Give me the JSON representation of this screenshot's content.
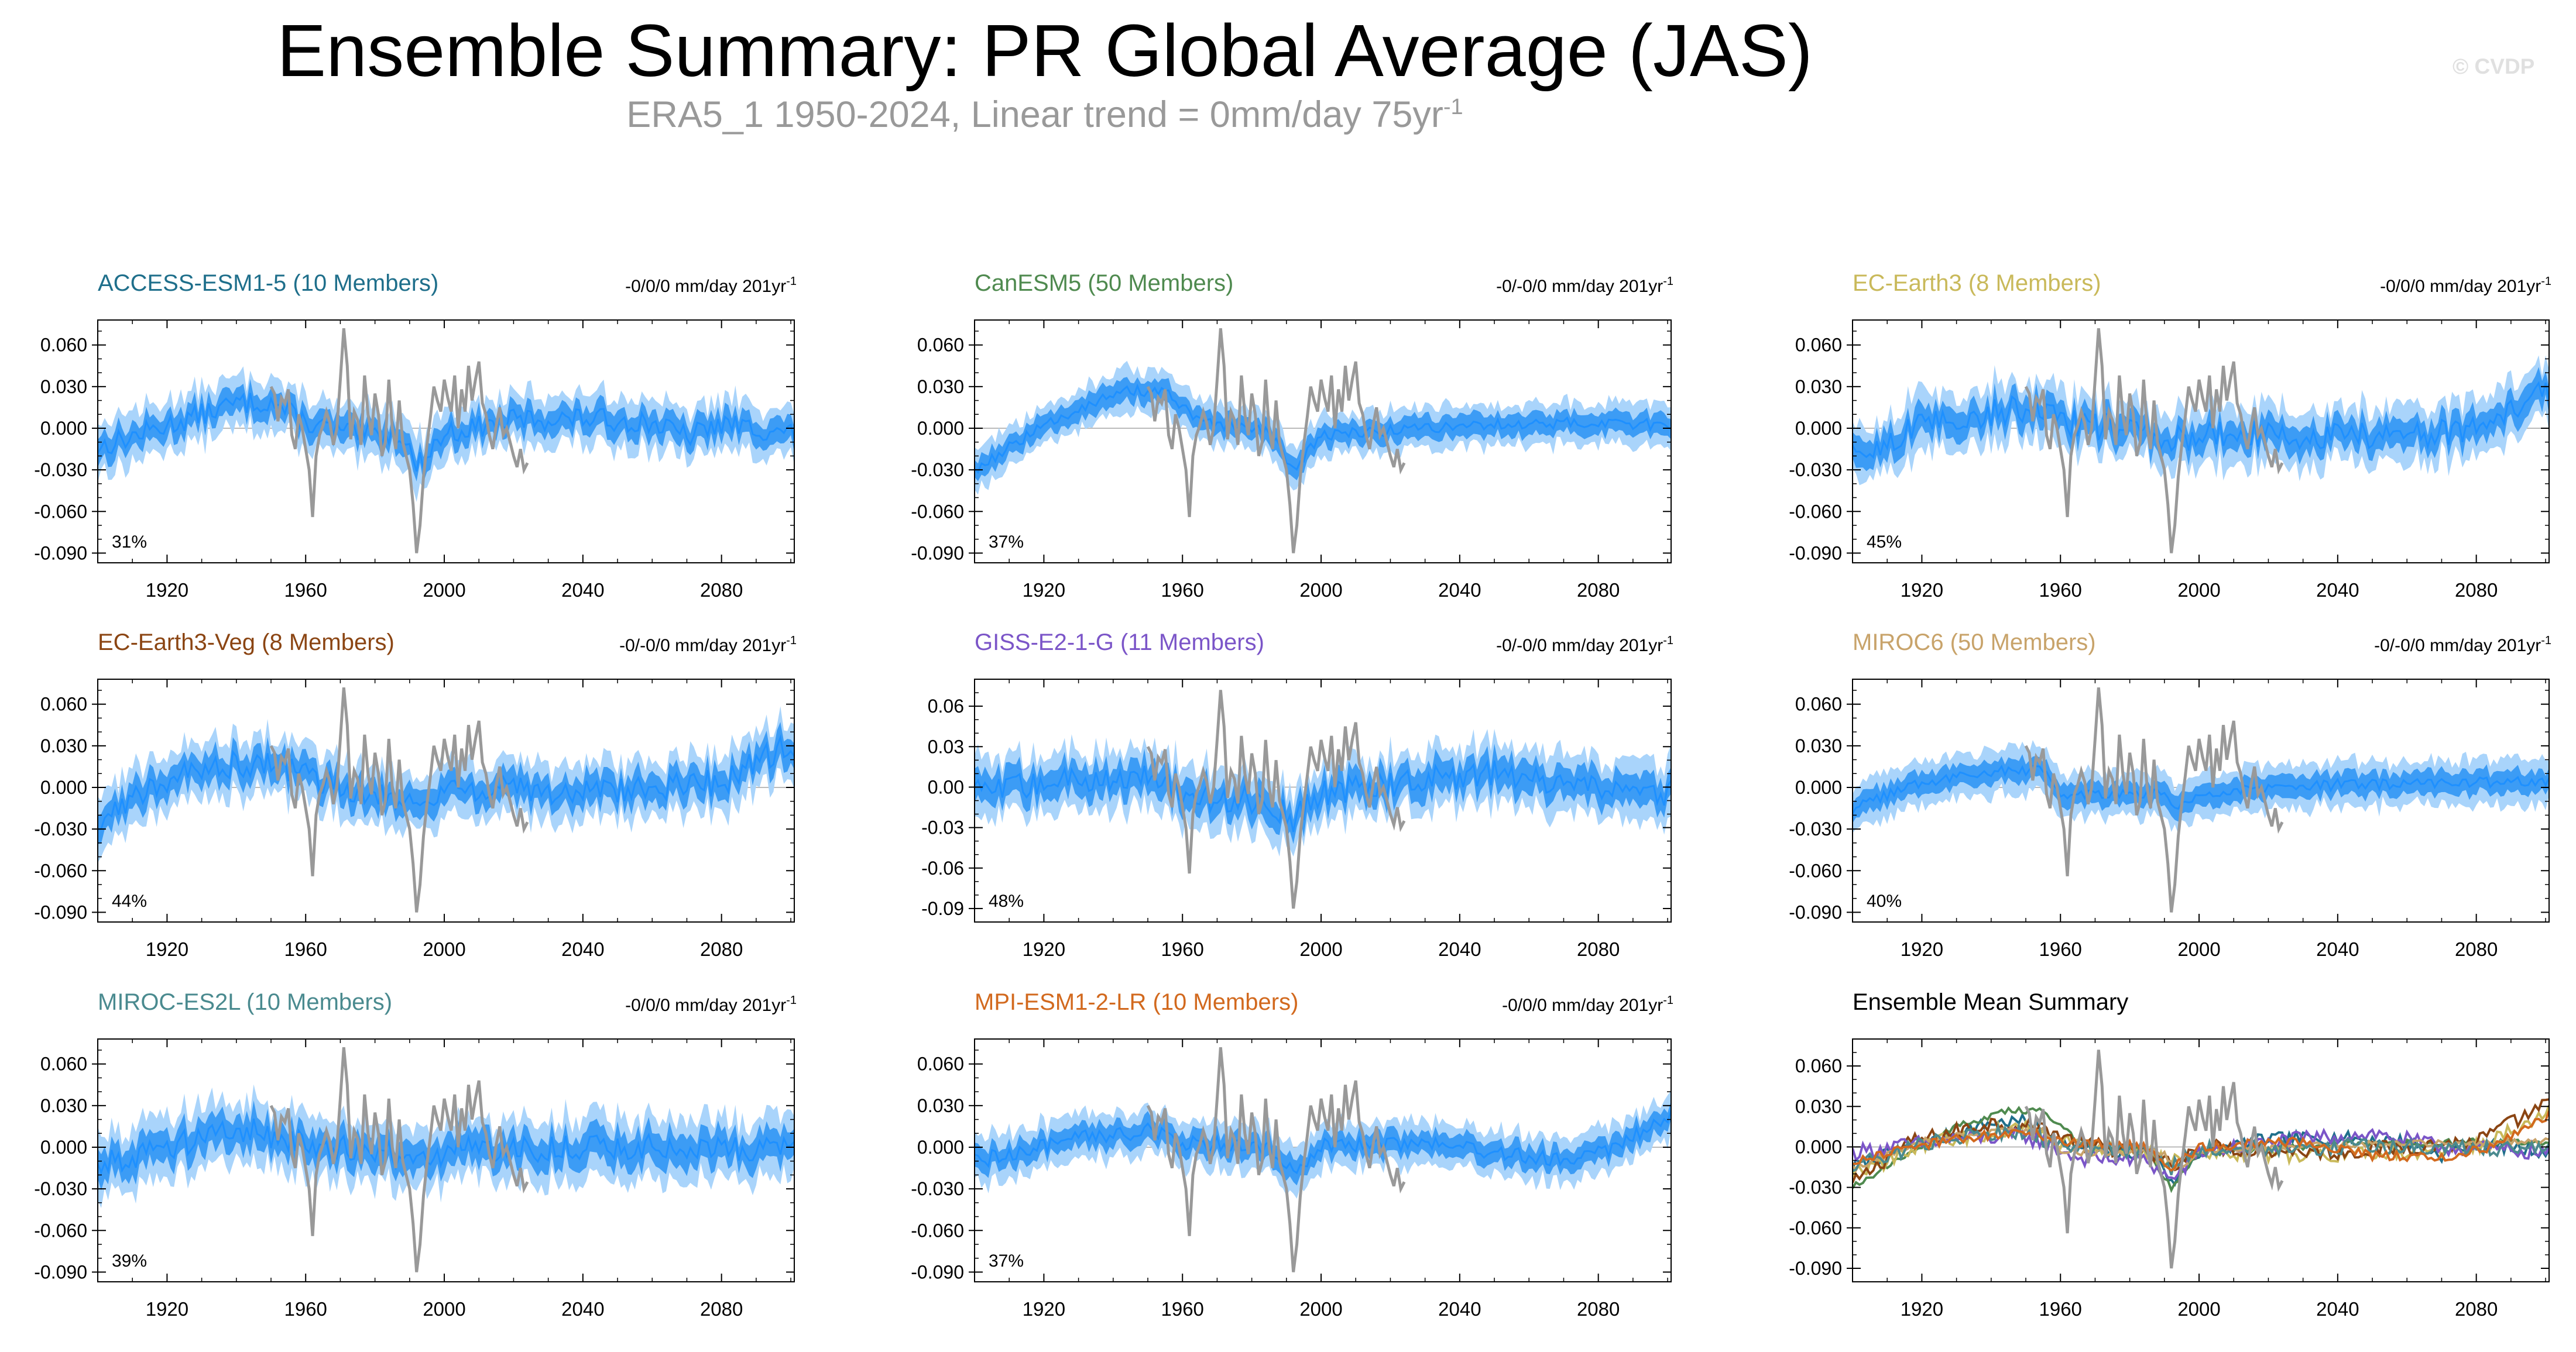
{
  "title": "Ensemble Summary: PR Global Average (JAS)",
  "subtitle": {
    "text": "ERA5_1 1950-2024, Linear trend = 0mm/day 75yr",
    "sup": "-1"
  },
  "watermark": "© CVDP",
  "colors": {
    "ensemble_mean": "#1e90ff",
    "band_inner": "#3c9cf5",
    "band_outer": "#a9d4fb",
    "observations": "#999999"
  },
  "chart_data": [
    {
      "type": "line",
      "model": "ACCESS-ESM1-5 (10 Members)",
      "title_color": "#1f6f8b",
      "trend": "-0/0/0 mm/day 201yr",
      "trend_sup": "-1",
      "percent": "31%",
      "yticks": [
        "0.060",
        "0.030",
        "0.000",
        "-0.030",
        "-0.060",
        "-0.090"
      ],
      "ytick_values": [
        0.06,
        0.03,
        0,
        -0.03,
        -0.06,
        -0.09
      ],
      "ylim": [
        -0.097,
        0.078
      ],
      "xlim": [
        1900,
        2101
      ],
      "xticks": [
        1920,
        1960,
        2000,
        2040,
        2080
      ],
      "profile": [
        [
          1900,
          -0.014
        ],
        [
          1920,
          0.002
        ],
        [
          1940,
          0.018
        ],
        [
          1950,
          0.019
        ],
        [
          1960,
          0.004
        ],
        [
          1975,
          -0.005
        ],
        [
          1988,
          -0.004
        ],
        [
          1992,
          -0.028
        ],
        [
          2000,
          -0.004
        ],
        [
          2020,
          0.006
        ],
        [
          2040,
          0.007
        ],
        [
          2060,
          0.004
        ],
        [
          2070,
          -0.006
        ],
        [
          2080,
          0.003
        ],
        [
          2101,
          -0.004
        ]
      ],
      "spread": 0.018,
      "noise": 0.008
    },
    {
      "type": "line",
      "model": "CanESM5 (50 Members)",
      "title_color": "#4f8a4f",
      "trend": "-0/-0/0 mm/day 201yr",
      "trend_sup": "-1",
      "percent": "37%",
      "yticks": [
        "0.060",
        "0.030",
        "0.000",
        "-0.030",
        "-0.060",
        "-0.090"
      ],
      "ytick_values": [
        0.06,
        0.03,
        0,
        -0.03,
        -0.06,
        -0.09
      ],
      "ylim": [
        -0.097,
        0.078
      ],
      "xlim": [
        1900,
        2101
      ],
      "xticks": [
        1920,
        1960,
        2000,
        2040,
        2080
      ],
      "profile": [
        [
          1900,
          -0.03
        ],
        [
          1915,
          -0.006
        ],
        [
          1930,
          0.015
        ],
        [
          1945,
          0.027
        ],
        [
          1955,
          0.026
        ],
        [
          1965,
          0.004
        ],
        [
          1985,
          -0.003
        ],
        [
          1992,
          -0.03
        ],
        [
          2000,
          -0.005
        ],
        [
          2040,
          0.002
        ],
        [
          2080,
          0.004
        ],
        [
          2101,
          0.002
        ]
      ],
      "spread": 0.015,
      "noise": 0.004
    },
    {
      "type": "line",
      "model": "EC-Earth3 (8 Members)",
      "title_color": "#c9b95a",
      "trend": "-0/0/0 mm/day 201yr",
      "trend_sup": "-1",
      "percent": "45%",
      "yticks": [
        "0.060",
        "0.030",
        "0.000",
        "-0.030",
        "-0.060",
        "-0.090"
      ],
      "ytick_values": [
        0.06,
        0.03,
        0,
        -0.03,
        -0.06,
        -0.09
      ],
      "ylim": [
        -0.097,
        0.078
      ],
      "xlim": [
        1900,
        2101
      ],
      "xticks": [
        1920,
        1960,
        2000,
        2040,
        2080
      ],
      "profile": [
        [
          1900,
          -0.022
        ],
        [
          1920,
          0.002
        ],
        [
          1950,
          0.015
        ],
        [
          1960,
          0.005
        ],
        [
          1980,
          -0.002
        ],
        [
          1992,
          -0.01
        ],
        [
          2000,
          -0.004
        ],
        [
          2040,
          -0.006
        ],
        [
          2070,
          -0.004
        ],
        [
          2085,
          0.004
        ],
        [
          2101,
          0.028
        ]
      ],
      "spread": 0.02,
      "noise": 0.01
    },
    {
      "type": "line",
      "model": "EC-Earth3-Veg (8 Members)",
      "title_color": "#8b4513",
      "trend": "-0/-0/0 mm/day 201yr",
      "trend_sup": "-1",
      "percent": "44%",
      "yticks": [
        "0.060",
        "0.030",
        "0.000",
        "-0.030",
        "-0.060",
        "-0.090"
      ],
      "ytick_values": [
        0.06,
        0.03,
        0,
        -0.03,
        -0.06,
        -0.09
      ],
      "ylim": [
        -0.097,
        0.078
      ],
      "xlim": [
        1900,
        2101
      ],
      "xticks": [
        1920,
        1960,
        2000,
        2040,
        2080
      ],
      "profile": [
        [
          1900,
          -0.028
        ],
        [
          1915,
          0.002
        ],
        [
          1940,
          0.018
        ],
        [
          1955,
          0.014
        ],
        [
          1965,
          0.003
        ],
        [
          1985,
          -0.005
        ],
        [
          1992,
          -0.014
        ],
        [
          2000,
          0.0
        ],
        [
          2040,
          -0.004
        ],
        [
          2080,
          0.004
        ],
        [
          2101,
          0.032
        ]
      ],
      "spread": 0.02,
      "noise": 0.01
    },
    {
      "type": "line",
      "model": "GISS-E2-1-G (11 Members)",
      "title_color": "#7b55c8",
      "trend": "-0/-0/0 mm/day 201yr",
      "trend_sup": "-1",
      "percent": "48%",
      "yticks": [
        "0.06",
        "0.03",
        "0.00",
        "-0.03",
        "-0.06",
        "-0.09"
      ],
      "ytick_values": [
        0.06,
        0.03,
        0,
        -0.03,
        -0.06,
        -0.09
      ],
      "ylim": [
        -0.1,
        0.08
      ],
      "xlim": [
        1900,
        2101
      ],
      "xticks": [
        1920,
        1960,
        2000,
        2040,
        2080
      ],
      "profile": [
        [
          1900,
          -0.004
        ],
        [
          1930,
          0.006
        ],
        [
          1950,
          0.008
        ],
        [
          1965,
          -0.008
        ],
        [
          1985,
          -0.01
        ],
        [
          1992,
          -0.025
        ],
        [
          2000,
          -0.004
        ],
        [
          2030,
          0.006
        ],
        [
          2050,
          0.01
        ],
        [
          2070,
          0.0
        ],
        [
          2101,
          -0.004
        ]
      ],
      "spread": 0.022,
      "noise": 0.01
    },
    {
      "type": "line",
      "model": "MIROC6 (50 Members)",
      "title_color": "#c8a36a",
      "trend": "-0/-0/0 mm/day 201yr",
      "trend_sup": "-1",
      "percent": "40%",
      "yticks": [
        "0.060",
        "0.030",
        "0.000",
        "-0.030",
        "-0.060",
        "-0.090"
      ],
      "ytick_values": [
        0.06,
        0.03,
        0,
        -0.03,
        -0.06,
        -0.09
      ],
      "ylim": [
        -0.097,
        0.078
      ],
      "xlim": [
        1900,
        2101
      ],
      "xticks": [
        1920,
        1960,
        2000,
        2040,
        2080
      ],
      "profile": [
        [
          1900,
          -0.016
        ],
        [
          1920,
          0.004
        ],
        [
          1940,
          0.012
        ],
        [
          1955,
          0.012
        ],
        [
          1960,
          -0.004
        ],
        [
          1990,
          -0.004
        ],
        [
          1993,
          -0.017
        ],
        [
          2000,
          -0.004
        ],
        [
          2040,
          0.002
        ],
        [
          2101,
          0.004
        ]
      ],
      "spread": 0.016,
      "noise": 0.004
    },
    {
      "type": "line",
      "model": "MIROC-ES2L (10 Members)",
      "title_color": "#4a8a8f",
      "trend": "-0/0/0 mm/day 201yr",
      "trend_sup": "-1",
      "percent": "39%",
      "yticks": [
        "0.060",
        "0.030",
        "0.000",
        "-0.030",
        "-0.060",
        "-0.090"
      ],
      "ytick_values": [
        0.06,
        0.03,
        0,
        -0.03,
        -0.06,
        -0.09
      ],
      "ylim": [
        -0.097,
        0.078
      ],
      "xlim": [
        1900,
        2101
      ],
      "xticks": [
        1920,
        1960,
        2000,
        2040,
        2080
      ],
      "profile": [
        [
          1900,
          -0.012
        ],
        [
          1925,
          0.004
        ],
        [
          1945,
          0.012
        ],
        [
          1960,
          0.003
        ],
        [
          1985,
          -0.004
        ],
        [
          1992,
          -0.016
        ],
        [
          2000,
          -0.002
        ],
        [
          2040,
          0.0
        ],
        [
          2101,
          -0.002
        ]
      ],
      "spread": 0.022,
      "noise": 0.01
    },
    {
      "type": "line",
      "model": "MPI-ESM1-2-LR (10 Members)",
      "title_color": "#d2691e",
      "trend": "-0/0/0 mm/day 201yr",
      "trend_sup": "-1",
      "percent": "37%",
      "yticks": [
        "0.060",
        "0.030",
        "0.000",
        "-0.030",
        "-0.060",
        "-0.090"
      ],
      "ytick_values": [
        0.06,
        0.03,
        0,
        -0.03,
        -0.06,
        -0.09
      ],
      "ylim": [
        -0.097,
        0.078
      ],
      "xlim": [
        1900,
        2101
      ],
      "xticks": [
        1920,
        1960,
        2000,
        2040,
        2080
      ],
      "profile": [
        [
          1900,
          -0.01
        ],
        [
          1925,
          0.004
        ],
        [
          1950,
          0.012
        ],
        [
          1960,
          0.004
        ],
        [
          1985,
          0.0
        ],
        [
          1992,
          -0.016
        ],
        [
          2000,
          0.0
        ],
        [
          2030,
          0.004
        ],
        [
          2050,
          -0.006
        ],
        [
          2070,
          -0.008
        ],
        [
          2085,
          0.0
        ],
        [
          2101,
          0.024
        ]
      ],
      "spread": 0.016,
      "noise": 0.006
    },
    {
      "type": "line",
      "model": "Ensemble Mean Summary",
      "title_color": "#000000",
      "trend": "",
      "trend_sup": "",
      "percent": "",
      "summary": true,
      "yticks": [
        "0.060",
        "0.030",
        "0.000",
        "-0.030",
        "-0.060",
        "-0.090"
      ],
      "ytick_values": [
        0.06,
        0.03,
        0,
        -0.03,
        -0.06,
        -0.09
      ],
      "ylim": [
        -0.1,
        0.08
      ],
      "xlim": [
        1900,
        2101
      ],
      "xticks": [
        1920,
        1960,
        2000,
        2040,
        2080
      ]
    }
  ],
  "observations": {
    "name": "ERA5_1",
    "x": [
      1950,
      1951,
      1952,
      1953,
      1954,
      1955,
      1956,
      1957,
      1958,
      1959,
      1960,
      1961,
      1962,
      1963,
      1964,
      1965,
      1966,
      1967,
      1968,
      1969,
      1970,
      1971,
      1972,
      1973,
      1974,
      1975,
      1976,
      1977,
      1978,
      1979,
      1980,
      1981,
      1982,
      1983,
      1984,
      1985,
      1986,
      1987,
      1988,
      1989,
      1990,
      1991,
      1992,
      1993,
      1994,
      1995,
      1996,
      1997,
      1998,
      1999,
      2000,
      2001,
      2002,
      2003,
      2004,
      2005,
      2006,
      2007,
      2008,
      2009,
      2010,
      2011,
      2012,
      2013,
      2014,
      2015,
      2016,
      2017,
      2018,
      2019,
      2020,
      2021,
      2022,
      2023,
      2024
    ],
    "y": [
      0.03,
      0.025,
      0.005,
      0.022,
      0.018,
      0.028,
      -0.005,
      -0.015,
      0.01,
      0.0,
      -0.015,
      -0.03,
      -0.064,
      -0.02,
      -0.005,
      0.002,
      0.012,
      0.004,
      -0.012,
      0.0,
      0.035,
      0.072,
      0.045,
      -0.008,
      0.012,
      0.006,
      -0.012,
      0.038,
      0.01,
      -0.005,
      0.025,
      0.01,
      -0.02,
      -0.01,
      0.035,
      0.0,
      -0.015,
      0.02,
      -0.01,
      -0.02,
      -0.03,
      -0.055,
      -0.09,
      -0.07,
      -0.035,
      -0.012,
      0.008,
      0.03,
      0.02,
      0.012,
      0.035,
      0.022,
      0.012,
      0.038,
      0.0,
      0.028,
      0.012,
      0.045,
      0.02,
      0.035,
      0.048,
      0.018,
      0.01,
      -0.005,
      -0.015,
      0.002,
      0.015,
      -0.005,
      0.0,
      -0.01,
      -0.02,
      -0.028,
      -0.015,
      -0.03,
      -0.025
    ]
  }
}
